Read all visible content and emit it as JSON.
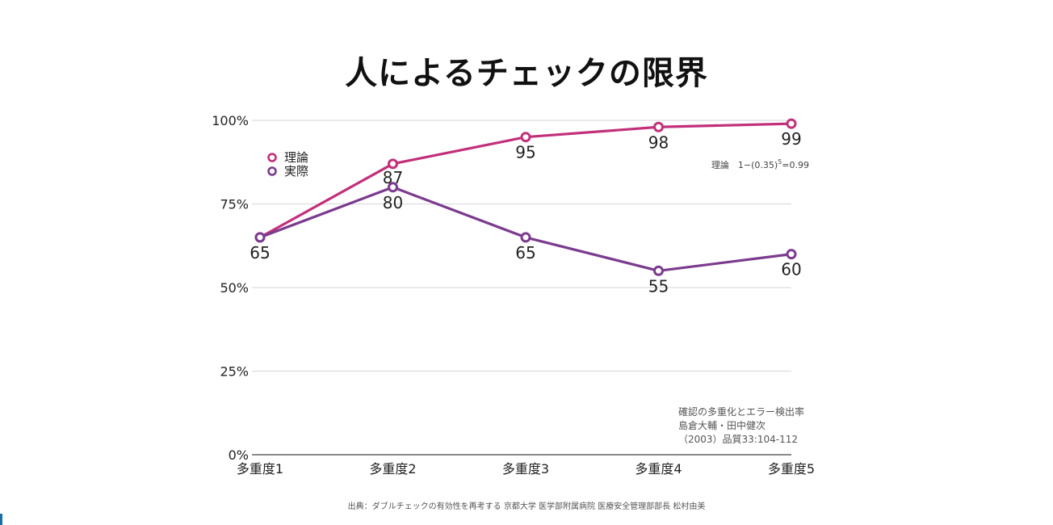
{
  "slide": {
    "title": "人によるチェックの限界",
    "source": "出典：ダブルチェックの有効性を再考する 京都大学 医学部附属病院 医療安全管理部部長 松村由美",
    "formula_prefix": "理論　1−(0.35)",
    "formula_exp": "5",
    "formula_suffix": "=0.99",
    "citation": [
      "確認の多重化とエラー検出率",
      "島倉大輔・田中健次",
      "（2003）品質33:104-112"
    ]
  },
  "chart_data": {
    "type": "line",
    "title": "人によるチェックの限界",
    "categories": [
      "多重度1",
      "多重度2",
      "多重度3",
      "多重度4",
      "多重度5"
    ],
    "yticks": [
      "0%",
      "25%",
      "50%",
      "75%",
      "100%"
    ],
    "ylim": [
      0,
      100
    ],
    "grid": true,
    "legend_position": "top-left",
    "series": [
      {
        "name": "理論",
        "color": "#c2307a",
        "values": [
          65,
          87,
          95,
          98,
          99
        ],
        "label_pos": "below"
      },
      {
        "name": "実際",
        "color": "#7b3b8e",
        "values": [
          65,
          80,
          65,
          55,
          60
        ],
        "label_pos": "below"
      }
    ]
  }
}
